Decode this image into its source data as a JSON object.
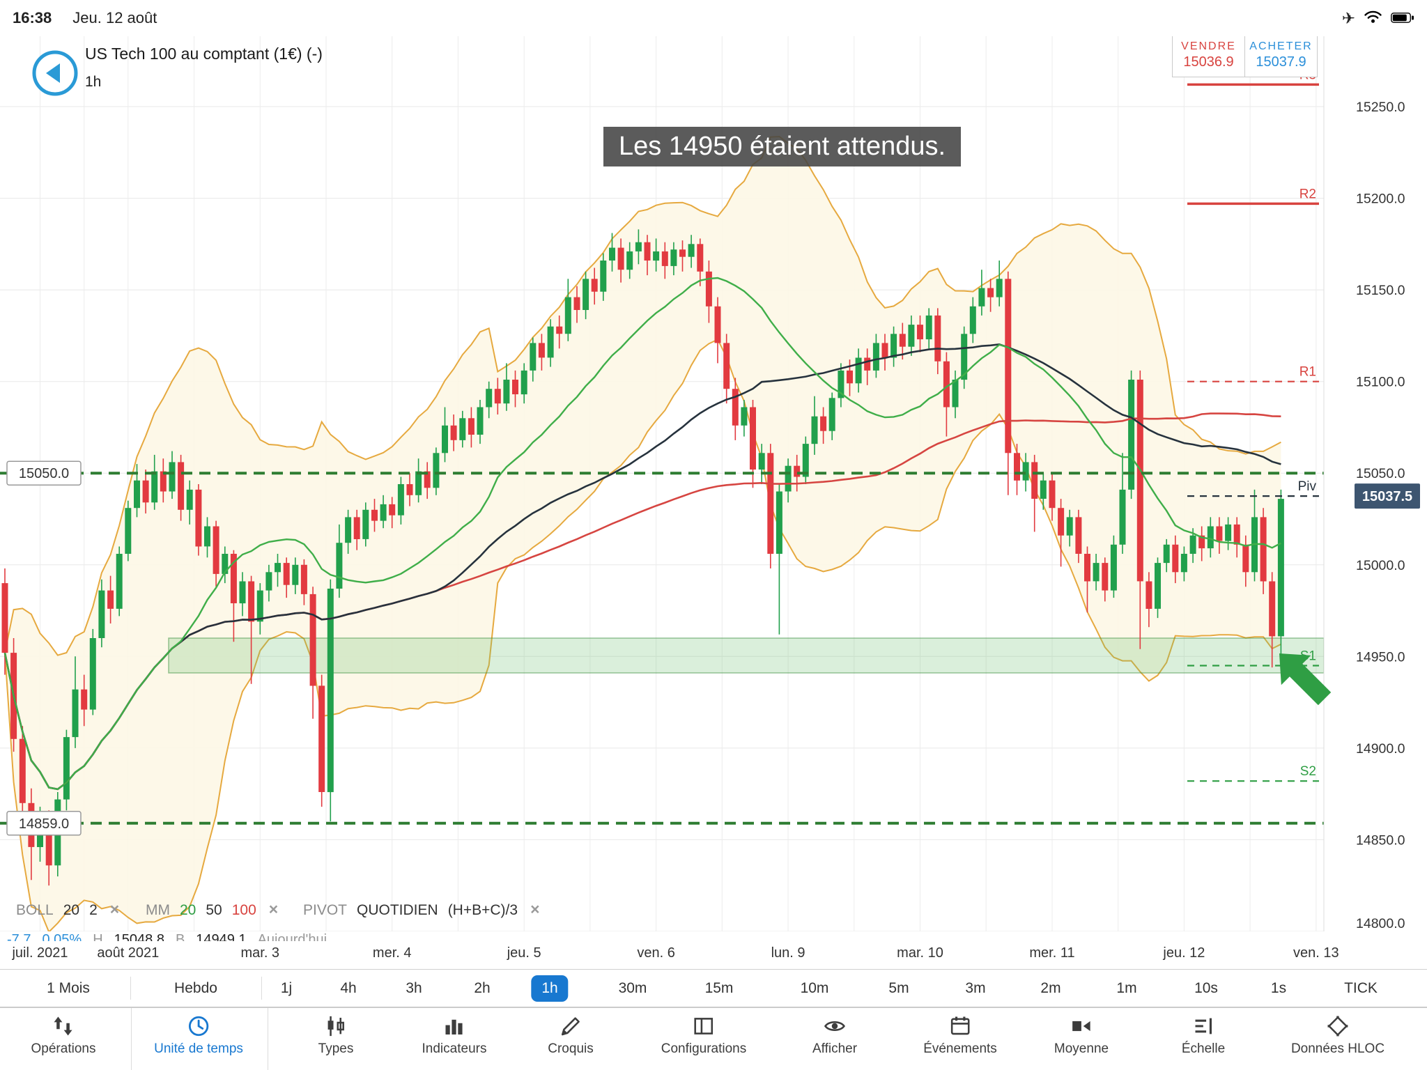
{
  "status_bar": {
    "time": "16:38",
    "date": "Jeu. 12 août",
    "icons": [
      "airplane",
      "wifi",
      "battery"
    ]
  },
  "header": {
    "title": "US Tech 100 au comptant (1€) (-)",
    "timeframe": "1h",
    "sell_label": "VENDRE",
    "sell_price": "15036.9",
    "buy_label": "ACHETER",
    "buy_price": "15037.9"
  },
  "annotation": {
    "text": "Les 14950 étaient attendus."
  },
  "colors": {
    "up": "#21a04c",
    "down": "#e23a40",
    "boll": "#e6a93f",
    "boll_fill": "#fdf7e6",
    "mm20": "#3fae49",
    "mm50": "#26323d",
    "mm100": "#d64541",
    "pivot_r": "#d8433f",
    "pivot_s": "#2f9e44",
    "pivot_p": "#26323d",
    "hline": "#2e7d32",
    "zone_fill": "rgba(106,190,112,0.25)",
    "zone_stroke": "rgba(56,142,60,0.5)",
    "tag_bg": "#3d5570",
    "accent": "#1878d0",
    "arrow": "#2f9e44"
  },
  "chart_data": {
    "type": "candlestick",
    "instrument": "US Tech 100 au comptant (1€)",
    "interval": "1h",
    "current_price": 15037.5,
    "y_axis": {
      "min": 14800,
      "max": 15250,
      "step": 50
    },
    "x_ticks": [
      {
        "label": "juil. 2021",
        "i": 4
      },
      {
        "label": "août 2021",
        "i": 14
      },
      {
        "label": "mar. 3",
        "i": 29
      },
      {
        "label": "mer. 4",
        "i": 44
      },
      {
        "label": "jeu. 5",
        "i": 59
      },
      {
        "label": "ven. 6",
        "i": 74
      },
      {
        "label": "lun. 9",
        "i": 89
      },
      {
        "label": "mar. 10",
        "i": 104
      },
      {
        "label": "mer. 11",
        "i": 119
      },
      {
        "label": "jeu. 12",
        "i": 134
      },
      {
        "label": "ven. 13",
        "i": 149
      }
    ],
    "candles": [
      [
        14990,
        14998,
        14940,
        14952
      ],
      [
        14952,
        14960,
        14898,
        14905
      ],
      [
        14905,
        14912,
        14862,
        14870
      ],
      [
        14870,
        14878,
        14828,
        14846
      ],
      [
        14846,
        14868,
        14838,
        14862
      ],
      [
        14862,
        14866,
        14825,
        14836
      ],
      [
        14836,
        14876,
        14830,
        14872
      ],
      [
        14872,
        14910,
        14866,
        14906
      ],
      [
        14906,
        14950,
        14900,
        14932
      ],
      [
        14932,
        14940,
        14912,
        14921
      ],
      [
        14921,
        14965,
        14918,
        14960
      ],
      [
        14960,
        14992,
        14955,
        14986
      ],
      [
        14986,
        14994,
        14968,
        14976
      ],
      [
        14976,
        15010,
        14972,
        15006
      ],
      [
        15006,
        15035,
        15002,
        15031
      ],
      [
        15031,
        15055,
        15026,
        15046
      ],
      [
        15046,
        15052,
        15028,
        15034
      ],
      [
        15034,
        15060,
        15030,
        15051
      ],
      [
        15051,
        15058,
        15034,
        15040
      ],
      [
        15040,
        15062,
        15036,
        15056
      ],
      [
        15056,
        15060,
        15024,
        15030
      ],
      [
        15030,
        15046,
        15022,
        15041
      ],
      [
        15041,
        15044,
        15005,
        15010
      ],
      [
        15010,
        15026,
        15004,
        15021
      ],
      [
        15021,
        15024,
        14988,
        14995
      ],
      [
        14995,
        15010,
        14990,
        15006
      ],
      [
        15006,
        15008,
        14958,
        14979
      ],
      [
        14979,
        14996,
        14972,
        14991
      ],
      [
        14991,
        14994,
        14935,
        14969
      ],
      [
        14969,
        14990,
        14962,
        14986
      ],
      [
        14986,
        15000,
        14980,
        14996
      ],
      [
        14996,
        15006,
        14988,
        15001
      ],
      [
        15001,
        15004,
        14982,
        14989
      ],
      [
        14989,
        15004,
        14984,
        15000
      ],
      [
        15000,
        15003,
        14978,
        14984
      ],
      [
        14984,
        14988,
        14916,
        14934
      ],
      [
        14934,
        14940,
        14868,
        14876
      ],
      [
        14876,
        14992,
        14860,
        14987
      ],
      [
        14987,
        15022,
        14982,
        15012
      ],
      [
        15012,
        15030,
        15006,
        15026
      ],
      [
        15026,
        15030,
        15008,
        15014
      ],
      [
        15014,
        15034,
        15010,
        15030
      ],
      [
        15030,
        15036,
        15018,
        15024
      ],
      [
        15024,
        15038,
        15020,
        15033
      ],
      [
        15033,
        15037,
        15020,
        15027
      ],
      [
        15027,
        15048,
        15022,
        15044
      ],
      [
        15044,
        15050,
        15032,
        15038
      ],
      [
        15038,
        15058,
        15034,
        15051
      ],
      [
        15051,
        15056,
        15036,
        15042
      ],
      [
        15042,
        15064,
        15038,
        15061
      ],
      [
        15061,
        15086,
        15056,
        15076
      ],
      [
        15076,
        15082,
        15062,
        15068
      ],
      [
        15068,
        15084,
        15064,
        15080
      ],
      [
        15080,
        15086,
        15064,
        15071
      ],
      [
        15071,
        15090,
        15066,
        15086
      ],
      [
        15086,
        15100,
        15080,
        15096
      ],
      [
        15096,
        15102,
        15082,
        15088
      ],
      [
        15088,
        15110,
        15084,
        15101
      ],
      [
        15101,
        15106,
        15086,
        15093
      ],
      [
        15093,
        15110,
        15088,
        15106
      ],
      [
        15106,
        15124,
        15100,
        15121
      ],
      [
        15121,
        15126,
        15106,
        15113
      ],
      [
        15113,
        15134,
        15108,
        15130
      ],
      [
        15130,
        15136,
        15118,
        15126
      ],
      [
        15126,
        15156,
        15122,
        15146
      ],
      [
        15146,
        15152,
        15132,
        15139
      ],
      [
        15139,
        15160,
        15134,
        15156
      ],
      [
        15156,
        15162,
        15142,
        15149
      ],
      [
        15149,
        15170,
        15144,
        15166
      ],
      [
        15166,
        15181,
        15160,
        15173
      ],
      [
        15173,
        15178,
        15154,
        15161
      ],
      [
        15161,
        15176,
        15156,
        15171
      ],
      [
        15171,
        15183,
        15164,
        15176
      ],
      [
        15176,
        15180,
        15158,
        15166
      ],
      [
        15166,
        15178,
        15160,
        15171
      ],
      [
        15171,
        15176,
        15156,
        15163
      ],
      [
        15163,
        15176,
        15158,
        15172
      ],
      [
        15172,
        15177,
        15160,
        15168
      ],
      [
        15168,
        15180,
        15162,
        15175
      ],
      [
        15175,
        15178,
        15152,
        15160
      ],
      [
        15160,
        15166,
        15132,
        15141
      ],
      [
        15141,
        15146,
        15110,
        15121
      ],
      [
        15121,
        15126,
        15088,
        15096
      ],
      [
        15096,
        15102,
        15068,
        15076
      ],
      [
        15076,
        15090,
        15070,
        15086
      ],
      [
        15086,
        15090,
        15042,
        15052
      ],
      [
        15052,
        15066,
        15044,
        15061
      ],
      [
        15061,
        15066,
        14998,
        15006
      ],
      [
        15006,
        15044,
        14962,
        15040
      ],
      [
        15040,
        15058,
        15034,
        15054
      ],
      [
        15054,
        15060,
        15040,
        15048
      ],
      [
        15048,
        15070,
        15044,
        15066
      ],
      [
        15066,
        15092,
        15060,
        15081
      ],
      [
        15081,
        15086,
        15066,
        15073
      ],
      [
        15073,
        15094,
        15068,
        15091
      ],
      [
        15091,
        15110,
        15086,
        15106
      ],
      [
        15106,
        15112,
        15092,
        15099
      ],
      [
        15099,
        15118,
        15094,
        15113
      ],
      [
        15113,
        15118,
        15098,
        15106
      ],
      [
        15106,
        15126,
        15102,
        15121
      ],
      [
        15121,
        15126,
        15106,
        15113
      ],
      [
        15113,
        15130,
        15108,
        15126
      ],
      [
        15126,
        15132,
        15112,
        15119
      ],
      [
        15119,
        15136,
        15114,
        15131
      ],
      [
        15131,
        15136,
        15116,
        15123
      ],
      [
        15123,
        15140,
        15118,
        15136
      ],
      [
        15136,
        15140,
        15104,
        15111
      ],
      [
        15111,
        15116,
        15070,
        15086
      ],
      [
        15086,
        15106,
        15080,
        15101
      ],
      [
        15101,
        15130,
        15096,
        15126
      ],
      [
        15126,
        15146,
        15121,
        15141
      ],
      [
        15141,
        15161,
        15136,
        15151
      ],
      [
        15151,
        15156,
        15138,
        15146
      ],
      [
        15146,
        15166,
        15141,
        15156
      ],
      [
        15156,
        15160,
        15038,
        15061
      ],
      [
        15061,
        15066,
        15038,
        15046
      ],
      [
        15046,
        15061,
        15040,
        15056
      ],
      [
        15056,
        15060,
        15018,
        15036
      ],
      [
        15036,
        15050,
        15030,
        15046
      ],
      [
        15046,
        15050,
        15024,
        15031
      ],
      [
        15031,
        15036,
        14999,
        15016
      ],
      [
        15016,
        15030,
        15010,
        15026
      ],
      [
        15026,
        15030,
        15001,
        15006
      ],
      [
        15006,
        15010,
        14974,
        14991
      ],
      [
        14991,
        15006,
        14986,
        15001
      ],
      [
        15001,
        15004,
        14980,
        14986
      ],
      [
        14986,
        15016,
        14982,
        15011
      ],
      [
        15011,
        15061,
        15006,
        15041
      ],
      [
        15041,
        15106,
        15036,
        15101
      ],
      [
        15101,
        15106,
        14954,
        14991
      ],
      [
        14991,
        14996,
        14966,
        14976
      ],
      [
        14976,
        15004,
        14971,
        15001
      ],
      [
        15001,
        15014,
        14996,
        15011
      ],
      [
        15011,
        15016,
        14990,
        14996
      ],
      [
        14996,
        15010,
        14991,
        15006
      ],
      [
        15006,
        15020,
        15001,
        15016
      ],
      [
        15016,
        15021,
        15002,
        15009
      ],
      [
        15009,
        15026,
        15004,
        15021
      ],
      [
        15021,
        15026,
        15006,
        15013
      ],
      [
        15013,
        15026,
        15008,
        15022
      ],
      [
        15022,
        15026,
        15004,
        15011
      ],
      [
        15011,
        15016,
        14988,
        14996
      ],
      [
        14996,
        15041,
        14991,
        15026
      ],
      [
        15026,
        15031,
        14984,
        14991
      ],
      [
        14991,
        14996,
        14944,
        14961
      ],
      [
        14961,
        15041,
        14949,
        15036
      ]
    ],
    "overlays": {
      "bollinger": {
        "period": 20,
        "deviation": 2
      },
      "moving_averages": [
        {
          "period": 20,
          "color": "#3fae49"
        },
        {
          "period": 50,
          "color": "#26323d"
        },
        {
          "period": 100,
          "color": "#d64541"
        }
      ],
      "pivot_levels": [
        {
          "label": "R3",
          "price": 15262,
          "style": "solid",
          "color": "#d8433f"
        },
        {
          "label": "R2",
          "price": 15197,
          "style": "solid",
          "color": "#d8433f"
        },
        {
          "label": "R1",
          "price": 15100,
          "style": "dashed",
          "color": "#d8433f"
        },
        {
          "label": "Piv",
          "price": 15037.5,
          "style": "dashed",
          "color": "#26323d"
        },
        {
          "label": "S1",
          "price": 14945,
          "style": "dashed",
          "color": "#2f9e44"
        },
        {
          "label": "S2",
          "price": 14882,
          "style": "dashed",
          "color": "#2f9e44"
        }
      ],
      "horizontal_lines": [
        {
          "label": "15050.0",
          "price": 15050
        },
        {
          "label": "14859.0",
          "price": 14859
        }
      ],
      "zone": {
        "from": 14941,
        "to": 14960
      }
    }
  },
  "legend": {
    "boll": {
      "name": "BOLL",
      "p1": "20",
      "p2": "2"
    },
    "mm": {
      "name": "MM",
      "p1": "20",
      "p2": "50",
      "p3": "100"
    },
    "pivot": {
      "name": "PIVOT",
      "p1": "QUOTIDIEN",
      "p2": "(H+B+C)/3"
    },
    "close": "×"
  },
  "stats": {
    "change": "-7.7",
    "change_pct": "0.05%",
    "high_label": "H",
    "high": "15048.8",
    "low_label": "B",
    "low": "14949.1",
    "session": "Aujourd'hui"
  },
  "timeframes": {
    "items": [
      "1 Mois",
      "Hebdo",
      "1j",
      "4h",
      "3h",
      "2h",
      "1h",
      "30m",
      "15m",
      "10m",
      "5m",
      "3m",
      "2m",
      "1m",
      "10s",
      "1s",
      "TICK"
    ],
    "selected": "1h"
  },
  "toolbar": {
    "items": [
      {
        "label": "Opérations",
        "icon": "operations"
      },
      {
        "label": "Unité de temps",
        "icon": "clock",
        "selected": true
      },
      {
        "label": "Types",
        "icon": "types"
      },
      {
        "label": "Indicateurs",
        "icon": "indicators"
      },
      {
        "label": "Croquis",
        "icon": "sketch"
      },
      {
        "label": "Configurations",
        "icon": "config"
      },
      {
        "label": "Afficher",
        "icon": "eye"
      },
      {
        "label": "Événements",
        "icon": "calendar"
      },
      {
        "label": "Moyenne",
        "icon": "mean"
      },
      {
        "label": "Échelle",
        "icon": "scale"
      },
      {
        "label": "Données HLOC",
        "icon": "hloc"
      }
    ]
  }
}
